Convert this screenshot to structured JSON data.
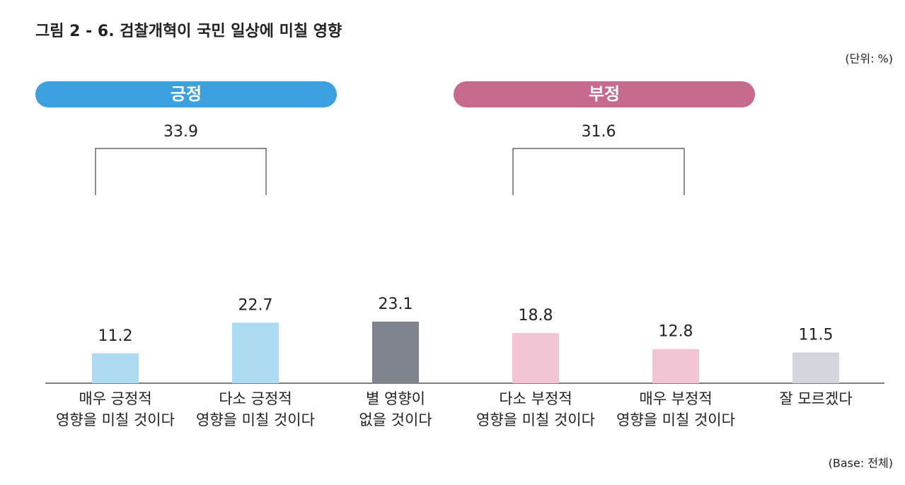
{
  "chart_data": {
    "type": "bar",
    "title": "그림 2 - 6. 검찰개혁이 국민 일상에 미칠 영향",
    "unit": "(단위: %)",
    "note": "(Base: 전체)",
    "categories": [
      [
        "매우 긍정적",
        "영향을 미칠 것이다"
      ],
      [
        "다소 긍정적",
        "영향을 미칠 것이다"
      ],
      [
        "별 영향이",
        "없을 것이다"
      ],
      [
        "다소 부정적",
        "영향을 미칠 것이다"
      ],
      [
        "매우 부정적",
        "영향을 미칠 것이다"
      ],
      [
        "잘 모르겠다"
      ]
    ],
    "values": [
      11.2,
      22.7,
      23.1,
      18.8,
      12.8,
      11.5
    ],
    "colors": [
      "#acdaf3",
      "#acdaf3",
      "#7d848d",
      "#f1c3d5",
      "#f1c3d5",
      "#d2d6dc"
    ],
    "groups": [
      {
        "label": "긍정",
        "value": 33.9,
        "color": "#3c9fe0"
      },
      {
        "label": "부정",
        "value": 31.6,
        "color": "#c56a8d"
      }
    ]
  }
}
